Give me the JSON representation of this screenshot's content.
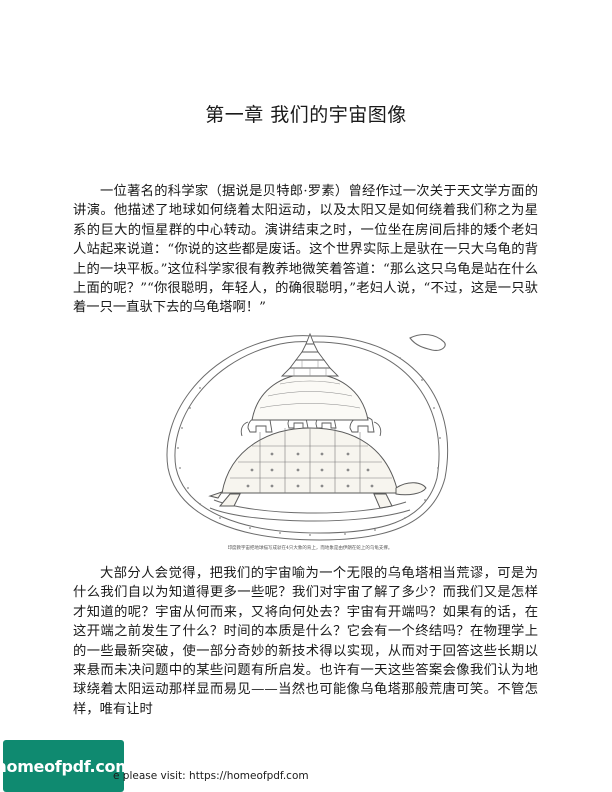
{
  "chapter": {
    "title": "第一章 我们的宇宙图像"
  },
  "paragraphs": [
    "一位著名的科学家（据说是贝特郎·罗素）曾经作过一次关于天文学方面的讲演。他描述了地球如何绕着太阳运动，以及太阳又是如何绕着我们称之为星系的巨大的恒星群的中心转动。演讲结束之时，一位坐在房间后排的矮个老妇人站起来说道：“你说的这些都是废话。这个世界实际上是驮在一只大乌龟的背上的一块平板。”这位科学家很有教养地微笑着答道：“那么这只乌龟是站在什么上面的呢？”“你很聪明，年轻人，的确很聪明，”老妇人说，“不过，这是一只驮着一只一直驮下去的乌龟塔啊！”",
    "大部分人会觉得，把我们的宇宙喻为一个无限的乌龟塔相当荒谬，可是为什么我们自以为知道得更多一些呢？我们对宇宙了解了多少？而我们又是怎样才知道的呢？宇宙从何而来，又将向何处去？宇宙有开端吗？如果有的话，在这开端之前发生了什么？时间的本质是什么？它会有一个终结吗？在物理学上的一些最新突破，使一部分奇妙的新技术得以实现，从而对于回答这些长期以来悬而未决问题中的某些问题有所启发。也许有一天这些答案会像我们认为地球绕着太阳运动那样显而易见——当然也可能像乌龟塔那般荒唐可笑。不管怎样，唯有让时"
  ],
  "figure": {
    "caption": "印度教宇宙把地球描写成驮在4只大象的背上，而地象是由伊朗在蛇上的乌龟支撑。"
  },
  "footer": {
    "logo_text": "homeofpdf.com",
    "link_text": "e please visit: https://homeofpdf.com"
  }
}
